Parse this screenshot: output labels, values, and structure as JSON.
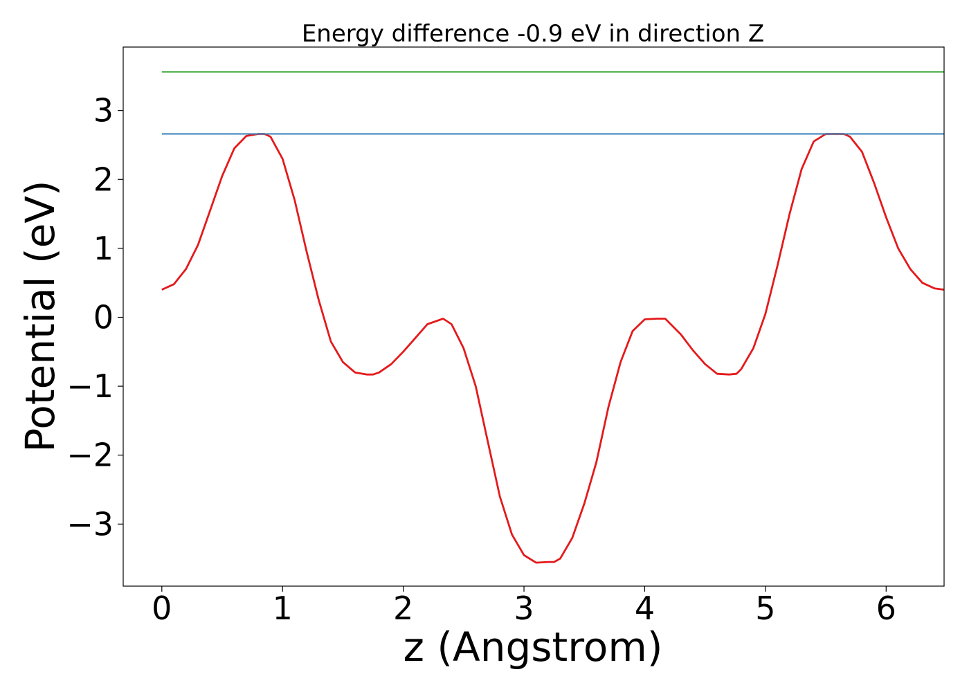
{
  "chart_data": {
    "type": "line",
    "title": "Energy difference -0.9 eV in direction Z",
    "xlabel": "z (Angstrom)",
    "ylabel": "Potential (eV)",
    "xlim": [
      -0.32,
      6.48
    ],
    "ylim": [
      -3.9,
      3.92
    ],
    "xticks": [
      0,
      1,
      2,
      3,
      4,
      5,
      6
    ],
    "xtick_labels": [
      "0",
      "1",
      "2",
      "3",
      "4",
      "5",
      "6"
    ],
    "yticks": [
      -3,
      -2,
      -1,
      0,
      1,
      2,
      3
    ],
    "ytick_labels": [
      "−3",
      "−2",
      "−1",
      "0",
      "1",
      "2",
      "3"
    ],
    "grid": false,
    "series": [
      {
        "color": "#e41a1c",
        "x": [
          0,
          0.1,
          0.2,
          0.3,
          0.4,
          0.5,
          0.6,
          0.7,
          0.8,
          0.85,
          0.9,
          1.0,
          1.1,
          1.2,
          1.3,
          1.4,
          1.5,
          1.6,
          1.7,
          1.75,
          1.8,
          1.9,
          2.0,
          2.1,
          2.2,
          2.33,
          2.4,
          2.5,
          2.6,
          2.7,
          2.8,
          2.9,
          3.0,
          3.1,
          3.2,
          3.25,
          3.3,
          3.4,
          3.5,
          3.6,
          3.7,
          3.8,
          3.9,
          4.0,
          4.1,
          4.17,
          4.3,
          4.4,
          4.5,
          4.6,
          4.7,
          4.76,
          4.8,
          4.9,
          5.0,
          5.1,
          5.2,
          5.3,
          5.4,
          5.5,
          5.6,
          5.65,
          5.7,
          5.8,
          5.9,
          6.0,
          6.1,
          6.2,
          6.3,
          6.4,
          6.48
        ],
        "y": [
          0.4,
          0.48,
          0.7,
          1.05,
          1.55,
          2.05,
          2.45,
          2.63,
          2.66,
          2.66,
          2.62,
          2.3,
          1.7,
          0.95,
          0.25,
          -0.35,
          -0.65,
          -0.8,
          -0.83,
          -0.83,
          -0.8,
          -0.68,
          -0.5,
          -0.3,
          -0.1,
          -0.02,
          -0.1,
          -0.45,
          -1.0,
          -1.8,
          -2.6,
          -3.15,
          -3.45,
          -3.56,
          -3.55,
          -3.55,
          -3.5,
          -3.2,
          -2.7,
          -2.1,
          -1.3,
          -0.65,
          -0.2,
          -0.03,
          -0.02,
          -0.02,
          -0.25,
          -0.48,
          -0.68,
          -0.82,
          -0.83,
          -0.82,
          -0.75,
          -0.45,
          0.05,
          0.75,
          1.5,
          2.15,
          2.55,
          2.66,
          2.66,
          2.66,
          2.62,
          2.4,
          1.95,
          1.45,
          1.0,
          0.7,
          0.5,
          0.42,
          0.4
        ]
      },
      {
        "color": "#377eb8",
        "x": [
          0,
          6.48
        ],
        "y": [
          2.66,
          2.66
        ]
      },
      {
        "color": "#4daf4a",
        "x": [
          0,
          6.48
        ],
        "y": [
          3.56,
          3.56
        ]
      }
    ]
  }
}
